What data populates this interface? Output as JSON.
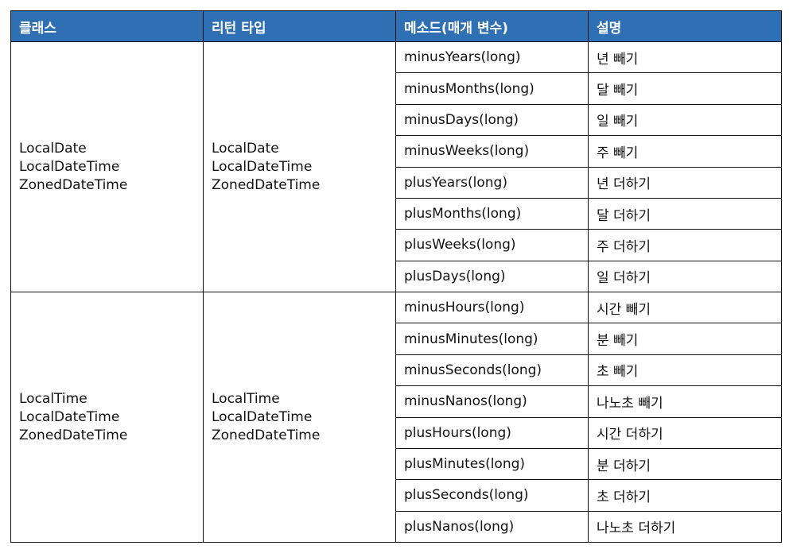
{
  "columns": [
    "클래스",
    "리턴 타입",
    "메소드(매개 변수)",
    "설명"
  ],
  "groups": [
    {
      "classes": [
        "LocalDate",
        "LocalDateTime",
        "ZonedDateTime"
      ],
      "return_types": [
        "LocalDate",
        "LocalDateTime",
        "ZonedDateTime"
      ],
      "rows": [
        {
          "method": "minusYears(long)",
          "description": "년 빼기"
        },
        {
          "method": "minusMonths(long)",
          "description": "달 빼기"
        },
        {
          "method": "minusDays(long)",
          "description": "일 빼기"
        },
        {
          "method": "minusWeeks(long)",
          "description": "주 빼기"
        },
        {
          "method": "plusYears(long)",
          "description": "년 더하기"
        },
        {
          "method": "plusMonths(long)",
          "description": "달 더하기"
        },
        {
          "method": "plusWeeks(long)",
          "description": "주 더하기"
        },
        {
          "method": "plusDays(long)",
          "description": "일 더하기"
        }
      ]
    },
    {
      "classes": [
        "LocalTime",
        "LocalDateTime",
        "ZonedDateTime"
      ],
      "return_types": [
        "LocalTime",
        "LocalDateTime",
        "ZonedDateTime"
      ],
      "rows": [
        {
          "method": "minusHours(long)",
          "description": "시간 빼기"
        },
        {
          "method": "minusMinutes(long)",
          "description": "분 빼기"
        },
        {
          "method": "minusSeconds(long)",
          "description": "초 빼기"
        },
        {
          "method": "minusNanos(long)",
          "description": "나노초 빼기"
        },
        {
          "method": "plusHours(long)",
          "description": "시간 더하기"
        },
        {
          "method": "plusMinutes(long)",
          "description": "분 더하기"
        },
        {
          "method": "plusSeconds(long)",
          "description": "초 더하기"
        },
        {
          "method": "plusNanos(long)",
          "description": "나노초 더하기"
        }
      ]
    }
  ],
  "colors": {
    "header_bg": "#2f6fb3",
    "header_text": "#ffffff",
    "border": "#111111"
  }
}
